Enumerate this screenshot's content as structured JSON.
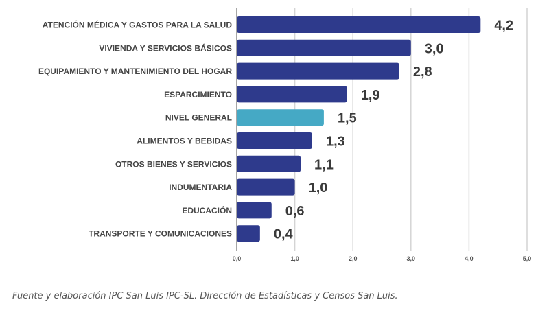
{
  "chart_data": {
    "type": "bar",
    "orientation": "horizontal",
    "title": "",
    "xlabel": "",
    "ylabel": "",
    "xlim": [
      0,
      5
    ],
    "x_ticks": [
      "0,0",
      "1,0",
      "2,0",
      "3,0",
      "4,0",
      "5,0"
    ],
    "grid": true,
    "categories": [
      "ATENCIÓN MÉDICA Y GASTOS PARA LA SALUD",
      "VIVIENDA Y SERVICIOS BÁSICOS",
      "EQUIPAMIENTO Y MANTENIMIENTO DEL HOGAR",
      "ESPARCIMIENTO",
      "NIVEL GENERAL",
      "ALIMENTOS Y BEBIDAS",
      "OTROS BIENES Y SERVICIOS",
      "INDUMENTARIA",
      "EDUCACIÓN",
      "TRANSPORTE Y COMUNICACIONES"
    ],
    "values": [
      4.2,
      3.0,
      2.8,
      1.9,
      1.5,
      1.3,
      1.1,
      1.0,
      0.6,
      0.4
    ],
    "value_labels": [
      "4,2",
      "3,0",
      "2,8",
      "1,9",
      "1,5",
      "1,3",
      "1,1",
      "1,0",
      "0,6",
      "0,4"
    ],
    "highlight_category": "NIVEL GENERAL",
    "colors": {
      "bar": "#2e3a8c",
      "highlight_bar": "#45a9c5",
      "highlight_label": "#45a9c5",
      "value_label": "#3a3a3a",
      "grid": "#d4d4d4",
      "axis": "#888888"
    }
  },
  "footer": {
    "source": "Fuente y elaboración IPC San Luis IPC-SL. Dirección de Estadísticas y Censos San Luis."
  }
}
